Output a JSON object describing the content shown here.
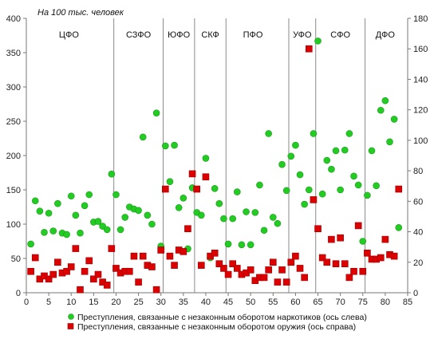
{
  "chart_data": {
    "type": "scatter",
    "title": "",
    "unit_label": "На 100 тыс. человек",
    "xlim": [
      0,
      85
    ],
    "xticks": [
      0,
      5,
      10,
      15,
      20,
      25,
      30,
      35,
      40,
      45,
      50,
      55,
      60,
      65,
      70,
      75,
      80,
      85
    ],
    "ylim_left": [
      0,
      400
    ],
    "yticks_left": [
      0,
      50,
      100,
      150,
      200,
      250,
      300,
      350,
      400
    ],
    "ylim_right": [
      0,
      180
    ],
    "yticks_right": [
      0,
      20,
      40,
      60,
      80,
      100,
      120,
      140,
      160,
      180
    ],
    "grid": false,
    "legend_position": "bottom",
    "region_dividers": [
      19.5,
      30.5,
      37.5,
      44.5,
      58.5,
      64.5,
      75.5
    ],
    "regions": [
      {
        "label": "ЦФО",
        "x": 9.5
      },
      {
        "label": "СЗФО",
        "x": 25
      },
      {
        "label": "ЮФО",
        "x": 34
      },
      {
        "label": "СКФ",
        "x": 41
      },
      {
        "label": "ПФО",
        "x": 50.5
      },
      {
        "label": "УФО",
        "x": 61.5
      },
      {
        "label": "СФО",
        "x": 70
      },
      {
        "label": "ДФО",
        "x": 80
      }
    ],
    "series": [
      {
        "name": "Преступления, связанные с незаконным оборотом наркотиков (ось слева)",
        "axis": "left",
        "marker": "circle",
        "color": "#22cc22",
        "x": [
          1,
          2,
          3,
          4,
          5,
          6,
          7,
          8,
          9,
          10,
          11,
          12,
          13,
          14,
          15,
          16,
          17,
          18,
          19,
          20,
          21,
          22,
          23,
          24,
          25,
          26,
          27,
          28,
          29,
          30,
          31,
          32,
          33,
          34,
          35,
          36,
          37,
          38,
          39,
          40,
          41,
          42,
          43,
          44,
          45,
          46,
          47,
          48,
          49,
          50,
          51,
          52,
          53,
          54,
          55,
          56,
          57,
          58,
          59,
          60,
          61,
          62,
          63,
          64,
          65,
          66,
          67,
          68,
          69,
          70,
          71,
          72,
          73,
          74,
          75,
          76,
          77,
          78,
          79,
          80,
          81,
          82,
          83
        ],
        "y": [
          71,
          134,
          119,
          88,
          116,
          90,
          130,
          87,
          85,
          141,
          113,
          87,
          127,
          143,
          103,
          104,
          97,
          92,
          173,
          143,
          92,
          110,
          125,
          122,
          120,
          227,
          113,
          100,
          262,
          68,
          214,
          162,
          215,
          124,
          138,
          64,
          153,
          117,
          113,
          196,
          51,
          152,
          130,
          108,
          71,
          108,
          147,
          70,
          118,
          70,
          117,
          157,
          91,
          232,
          110,
          101,
          187,
          149,
          199,
          215,
          172,
          129,
          150,
          232,
          367,
          144,
          193,
          180,
          207,
          150,
          208,
          232,
          170,
          157,
          75,
          142,
          207,
          156,
          266,
          280,
          220,
          253,
          95
        ]
      },
      {
        "name": "Преступления, связанные с незаконным оборотом оружия (ось справа)",
        "axis": "right",
        "marker": "square",
        "color": "#dd0000",
        "x": [
          1,
          2,
          3,
          4,
          5,
          6,
          7,
          8,
          9,
          10,
          11,
          12,
          13,
          14,
          15,
          16,
          17,
          18,
          19,
          20,
          21,
          22,
          23,
          24,
          25,
          26,
          27,
          28,
          29,
          30,
          31,
          32,
          33,
          34,
          35,
          36,
          37,
          38,
          39,
          40,
          41,
          42,
          43,
          44,
          45,
          46,
          47,
          48,
          49,
          50,
          51,
          52,
          53,
          54,
          55,
          56,
          57,
          58,
          59,
          60,
          61,
          62,
          63,
          64,
          65,
          66,
          67,
          68,
          69,
          70,
          71,
          72,
          73,
          74,
          75,
          76,
          77,
          78,
          79,
          80,
          81,
          82,
          83
        ],
        "y": [
          14,
          23,
          9,
          11,
          9,
          12,
          20,
          13,
          14,
          17,
          29,
          2,
          14,
          21,
          9,
          12,
          7,
          5,
          29,
          16,
          13,
          14,
          14,
          24,
          7,
          24,
          18,
          17,
          2,
          28,
          68,
          24,
          18,
          28,
          27,
          42,
          78,
          68,
          18,
          76,
          24,
          26,
          19,
          16,
          12,
          19,
          16,
          12,
          13,
          15,
          8,
          10,
          10,
          15,
          20,
          7,
          15,
          7,
          20,
          24,
          16,
          10,
          160,
          61,
          42,
          23,
          20,
          35,
          19,
          36,
          19,
          10,
          14,
          44,
          14,
          26,
          22,
          22,
          23,
          35,
          25,
          24,
          68
        ]
      }
    ]
  }
}
